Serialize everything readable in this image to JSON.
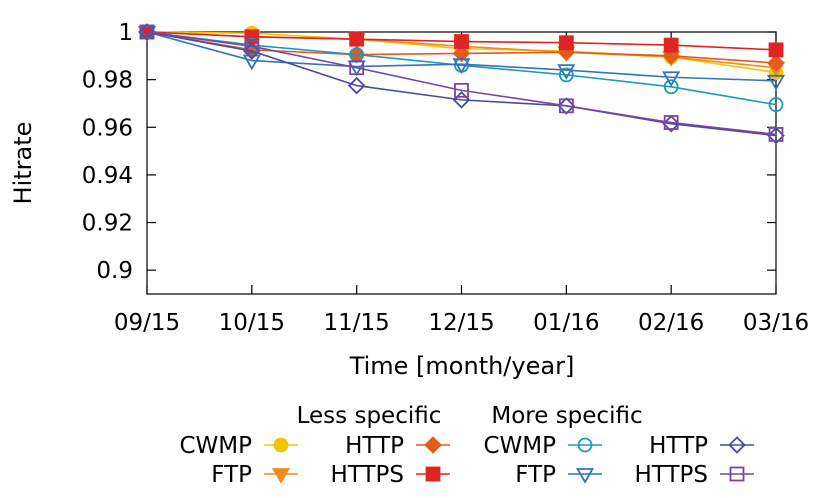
{
  "chart_data": {
    "type": "line",
    "xlabel": "Time [month/year]",
    "ylabel": "Hitrate",
    "categories": [
      "09/15",
      "10/15",
      "11/15",
      "12/15",
      "01/16",
      "02/16",
      "03/16"
    ],
    "ylim": [
      0.89,
      1.0
    ],
    "yticks": [
      "1",
      "0.98",
      "0.96",
      "0.94",
      "0.92",
      "0.9"
    ],
    "grid": false,
    "legend": {
      "placement": "bottom",
      "groups": [
        {
          "title": "Less specific",
          "series_idx": [
            0,
            1,
            2,
            3
          ]
        },
        {
          "title": "More specific",
          "series_idx": [
            4,
            5,
            6,
            7
          ]
        }
      ]
    },
    "series": [
      {
        "name": "CWMP",
        "group": "Less specific",
        "color": "#f5c400",
        "marker": "circle-filled",
        "values": [
          1.0,
          0.9995,
          0.997,
          0.993,
          0.992,
          0.9895,
          0.983
        ]
      },
      {
        "name": "FTP",
        "group": "Less specific",
        "color": "#f08a1c",
        "marker": "triangle-down-filled",
        "values": [
          1.0,
          0.998,
          0.997,
          0.994,
          0.9915,
          0.9895,
          0.985
        ]
      },
      {
        "name": "HTTP",
        "group": "Less specific",
        "color": "#e35a1c",
        "marker": "diamond-filled",
        "values": [
          1.0,
          0.9925,
          0.9905,
          0.991,
          0.9915,
          0.99,
          0.987
        ]
      },
      {
        "name": "HTTPS",
        "group": "Less specific",
        "color": "#e02424",
        "marker": "square-filled",
        "values": [
          1.0,
          0.998,
          0.997,
          0.996,
          0.9955,
          0.9945,
          0.9925
        ]
      },
      {
        "name": "CWMP",
        "group": "More specific",
        "color": "#1f97bf",
        "marker": "circle-open",
        "values": [
          1.0,
          0.9945,
          0.9905,
          0.986,
          0.982,
          0.977,
          0.9695
        ]
      },
      {
        "name": "FTP",
        "group": "More specific",
        "color": "#3473b6",
        "marker": "triangle-down-open",
        "values": [
          1.0,
          0.988,
          0.9855,
          0.9865,
          0.984,
          0.981,
          0.9795
        ]
      },
      {
        "name": "HTTP",
        "group": "More specific",
        "color": "#4a4ba0",
        "marker": "diamond-open",
        "values": [
          1.0,
          0.992,
          0.9775,
          0.9715,
          0.969,
          0.9615,
          0.9565
        ]
      },
      {
        "name": "HTTPS",
        "group": "More specific",
        "color": "#7746a0",
        "marker": "square-open",
        "values": [
          1.0,
          0.994,
          0.985,
          0.9755,
          0.969,
          0.962,
          0.957
        ]
      }
    ]
  }
}
